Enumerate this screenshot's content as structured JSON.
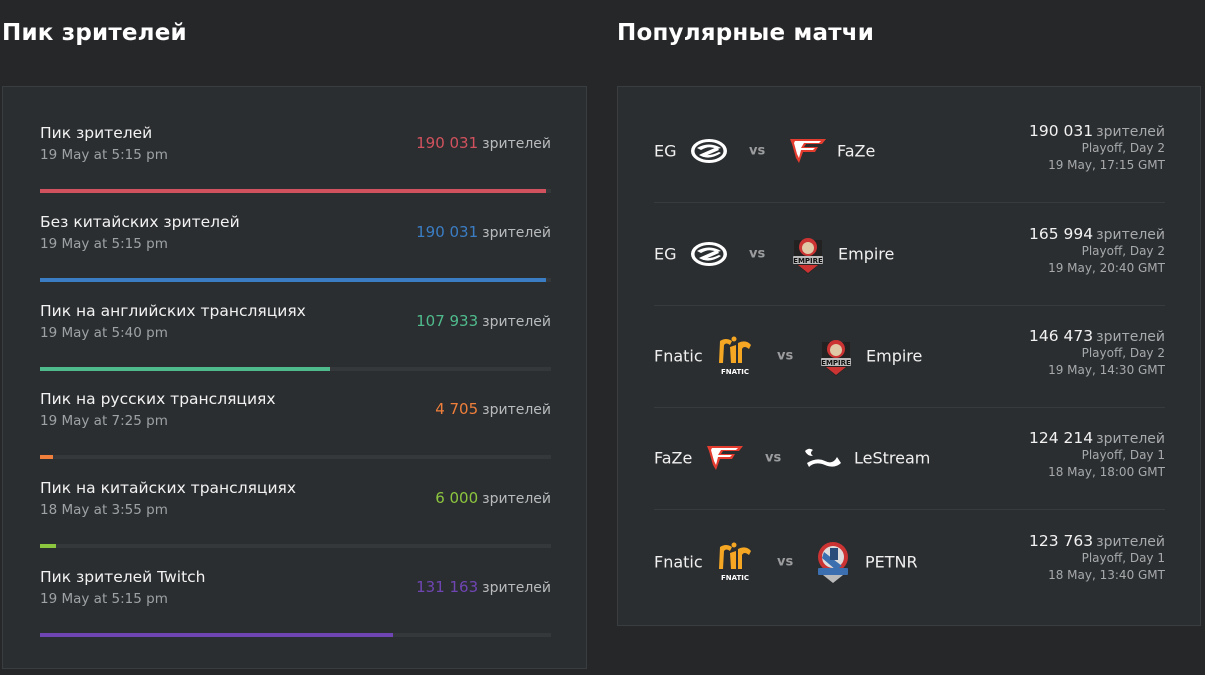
{
  "peak_section": {
    "title": "Пик зрителей",
    "unit": "зрителей",
    "items": [
      {
        "label": "Пик зрителей",
        "date": "19 May at 5:15 pm",
        "value": "190 031",
        "color": "#d1525e",
        "percent": 99
      },
      {
        "label": "Без китайских зрителей",
        "date": "19 May at 5:15 pm",
        "value": "190 031",
        "color": "#3a7dc4",
        "percent": 99
      },
      {
        "label": "Пик на английских трансляциях",
        "date": "19 May at 5:40 pm",
        "value": "107 933",
        "color": "#4fbb8d",
        "percent": 56.8
      },
      {
        "label": "Пик на русских трансляциях",
        "date": "19 May at 7:25 pm",
        "value": "4 705",
        "color": "#ef7f3b",
        "percent": 2.5
      },
      {
        "label": "Пик на китайских трансляциях",
        "date": "18 May at 3:55 pm",
        "value": "6 000",
        "color": "#8cc63f",
        "percent": 3.2
      },
      {
        "label": "Пик зрителей Twitch",
        "date": "19 May at 5:15 pm",
        "value": "131 163",
        "color": "#6f45b3",
        "percent": 69
      }
    ]
  },
  "matches_section": {
    "title": "Популярные матчи",
    "unit": "зрителей",
    "vs_label": "vs",
    "matches": [
      {
        "team1": "EG",
        "team1_logo": "eg-logo",
        "team2": "FaZe",
        "team2_logo": "faze-logo",
        "views": "190 031",
        "stage": "Playoff, Day 2",
        "time": "19 May, 17:15 GMT"
      },
      {
        "team1": "EG",
        "team1_logo": "eg-logo",
        "team2": "Empire",
        "team2_logo": "empire-logo",
        "views": "165 994",
        "stage": "Playoff, Day 2",
        "time": "19 May, 20:40 GMT"
      },
      {
        "team1": "Fnatic",
        "team1_logo": "fnatic-logo",
        "team2": "Empire",
        "team2_logo": "empire-logo",
        "views": "146 473",
        "stage": "Playoff, Day 2",
        "time": "19 May, 14:30 GMT"
      },
      {
        "team1": "FaZe",
        "team1_logo": "faze-logo",
        "team2": "LeStream",
        "team2_logo": "lestream-logo",
        "views": "124 214",
        "stage": "Playoff, Day 1",
        "time": "18 May, 18:00 GMT"
      },
      {
        "team1": "Fnatic",
        "team1_logo": "fnatic-logo",
        "team2": "PETNR",
        "team2_logo": "petnr-logo",
        "views": "123 763",
        "stage": "Playoff, Day 1",
        "time": "18 May, 13:40 GMT"
      }
    ]
  }
}
